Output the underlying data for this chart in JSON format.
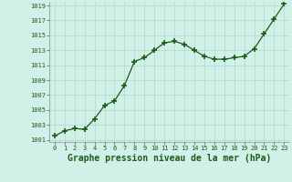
{
  "x": [
    0,
    1,
    2,
    3,
    4,
    5,
    6,
    7,
    8,
    9,
    10,
    11,
    12,
    13,
    14,
    15,
    16,
    17,
    18,
    19,
    20,
    21,
    22,
    23
  ],
  "y": [
    1001.5,
    1002.2,
    1002.5,
    1002.4,
    1003.8,
    1005.6,
    1006.2,
    1008.3,
    1011.5,
    1012.0,
    1013.0,
    1014.0,
    1014.2,
    1013.8,
    1013.0,
    1012.2,
    1011.8,
    1011.8,
    1012.0,
    1012.2,
    1013.2,
    1015.2,
    1017.2,
    1019.2
  ],
  "ylim": [
    1001,
    1019
  ],
  "xlim": [
    -0.5,
    23.5
  ],
  "yticks": [
    1001,
    1003,
    1005,
    1007,
    1009,
    1011,
    1013,
    1015,
    1017,
    1019
  ],
  "xticks": [
    0,
    1,
    2,
    3,
    4,
    5,
    6,
    7,
    8,
    9,
    10,
    11,
    12,
    13,
    14,
    15,
    16,
    17,
    18,
    19,
    20,
    21,
    22,
    23
  ],
  "xlabel": "Graphe pression niveau de la mer (hPa)",
  "line_color": "#1a5c1a",
  "marker": "+",
  "marker_color": "#1a5c1a",
  "bg_color": "#d0f0e8",
  "grid_color": "#b0d8cc",
  "tick_fontsize": 5.0,
  "xlabel_fontsize": 7.0,
  "linewidth": 0.9,
  "markersize": 5,
  "marker_linewidth": 1.2
}
